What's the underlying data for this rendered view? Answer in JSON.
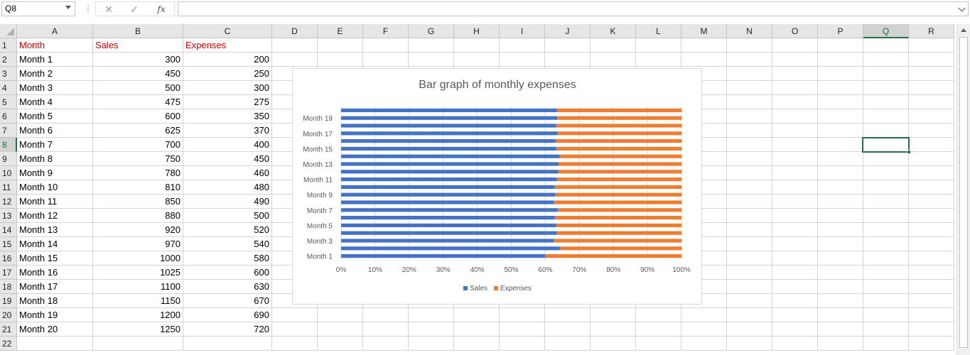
{
  "formula_bar": {
    "name_box": "Q8",
    "separator": "⋮",
    "cancel": "✕",
    "enter": "✓",
    "fx": "fx",
    "formula": ""
  },
  "columns": [
    "A",
    "B",
    "C",
    "D",
    "E",
    "F",
    "G",
    "H",
    "I",
    "J",
    "K",
    "L",
    "M",
    "N",
    "O",
    "P",
    "Q",
    "R"
  ],
  "selected_column": "Q",
  "selected_row": 8,
  "rows": [
    [
      "Month",
      "Sales",
      "Expenses"
    ],
    [
      "Month 1",
      "300",
      "200"
    ],
    [
      "Month 2",
      "450",
      "250"
    ],
    [
      "Month 3",
      "500",
      "300"
    ],
    [
      "Month 4",
      "475",
      "275"
    ],
    [
      "Month 5",
      "600",
      "350"
    ],
    [
      "Month 6",
      "625",
      "370"
    ],
    [
      "Month 7",
      "700",
      "400"
    ],
    [
      "Month 8",
      "750",
      "450"
    ],
    [
      "Month 9",
      "780",
      "460"
    ],
    [
      "Month 10",
      "810",
      "480"
    ],
    [
      "Month 11",
      "850",
      "490"
    ],
    [
      "Month 12",
      "880",
      "500"
    ],
    [
      "Month 13",
      "920",
      "520"
    ],
    [
      "Month 14",
      "970",
      "540"
    ],
    [
      "Month 15",
      "1000",
      "580"
    ],
    [
      "Month 16",
      "1025",
      "600"
    ],
    [
      "Month 17",
      "1100",
      "630"
    ],
    [
      "Month 18",
      "1150",
      "670"
    ],
    [
      "Month 19",
      "1200",
      "690"
    ],
    [
      "Month 20",
      "1250",
      "720"
    ],
    [
      "",
      "",
      ""
    ]
  ],
  "colors": {
    "header_text": "#e00000",
    "sales": "#4472c4",
    "expenses": "#ed7d31",
    "selection": "#217346"
  },
  "chart_data": {
    "type": "bar",
    "orientation": "horizontal",
    "stacking": "percent",
    "title": "Bar graph of monthly expenses",
    "categories": [
      "Month 1",
      "Month 2",
      "Month 3",
      "Month 4",
      "Month 5",
      "Month 6",
      "Month 7",
      "Month 8",
      "Month 9",
      "Month 10",
      "Month 11",
      "Month 12",
      "Month 13",
      "Month 14",
      "Month 15",
      "Month 16",
      "Month 17",
      "Month 18",
      "Month 19",
      "Month 20"
    ],
    "series": [
      {
        "name": "Sales",
        "values": [
          300,
          450,
          500,
          475,
          600,
          625,
          700,
          750,
          780,
          810,
          850,
          880,
          920,
          970,
          1000,
          1025,
          1100,
          1150,
          1200,
          1250
        ]
      },
      {
        "name": "Expenses",
        "values": [
          200,
          250,
          300,
          275,
          350,
          370,
          400,
          450,
          460,
          480,
          490,
          500,
          520,
          540,
          580,
          600,
          630,
          670,
          690,
          720
        ]
      }
    ],
    "x_ticks": [
      "0%",
      "10%",
      "20%",
      "30%",
      "40%",
      "50%",
      "60%",
      "70%",
      "80%",
      "90%",
      "100%"
    ],
    "y_tick_labels": [
      "Month 1",
      "Month 3",
      "Month 5",
      "Month 7",
      "Month 9",
      "Month 11",
      "Month 13",
      "Month 15",
      "Month 17",
      "Month 19"
    ],
    "xlim": [
      0,
      100
    ],
    "grid": true,
    "legend": "bottom"
  }
}
